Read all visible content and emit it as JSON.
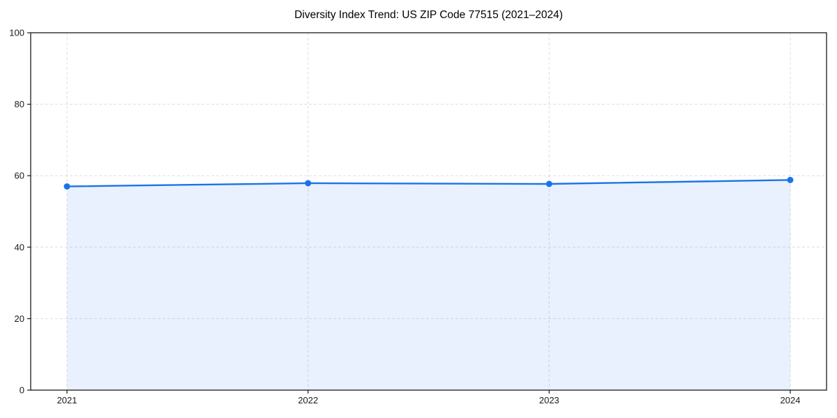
{
  "chart_data": {
    "type": "line",
    "title": "Diversity Index Trend: US ZIP Code 77515 (2021–2024)",
    "categories": [
      "2021",
      "2022",
      "2023",
      "2024"
    ],
    "series": [
      {
        "name": "Diversity Index",
        "values": [
          57.0,
          57.9,
          57.7,
          58.8
        ]
      }
    ],
    "xlabel": "",
    "ylabel": "",
    "ylim": [
      0,
      100
    ],
    "yticks": [
      0,
      20,
      40,
      60,
      80,
      100
    ],
    "grid": "dashed, both axes",
    "legend_position": "none",
    "colors": {
      "line": "#1a73e8",
      "marker": "#1a73e8",
      "area_fill": "#1a73e8",
      "area_fill_opacity": 0.1,
      "grid": "#dedede",
      "spine": "#1a1a1a",
      "tick_text": "#1a1a1a",
      "background": "#ffffff"
    }
  }
}
